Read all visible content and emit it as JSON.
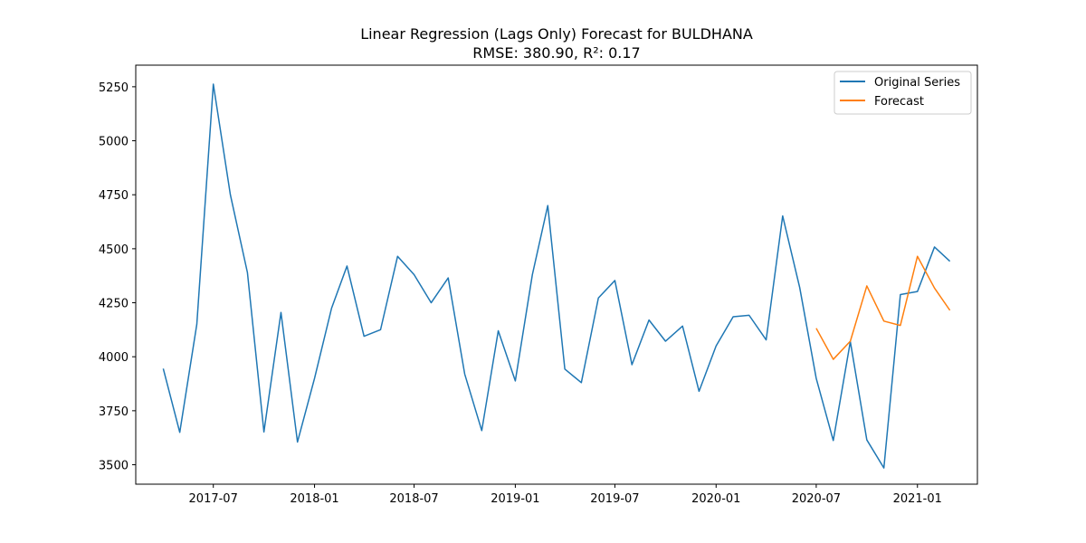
{
  "chart_data": {
    "type": "line",
    "title": "Linear Regression (Lags Only) Forecast for BULDHANA",
    "subtitle": "RMSE: 380.90, R²: 0.17",
    "xlabel": "",
    "ylabel": "",
    "xlim": [
      "2017-02-10",
      "2021-04-20"
    ],
    "ylim": [
      3410,
      5350
    ],
    "x_ticks": [
      "2017-07-01",
      "2018-01-01",
      "2018-07-01",
      "2019-01-01",
      "2019-07-01",
      "2020-01-01",
      "2020-07-01",
      "2021-01-01"
    ],
    "x_tick_labels": [
      "2017-07",
      "2018-01",
      "2018-07",
      "2019-01",
      "2019-07",
      "2020-01",
      "2020-07",
      "2021-01"
    ],
    "y_ticks": [
      3500,
      3750,
      4000,
      4250,
      4500,
      4750,
      5000,
      5250
    ],
    "y_tick_labels": [
      "3500",
      "3750",
      "4000",
      "4250",
      "4500",
      "4750",
      "5000",
      "5250"
    ],
    "grid": false,
    "legend_position": "top-right",
    "series": [
      {
        "name": "Original Series",
        "color": "#1f77b4",
        "x": [
          "2017-04-01",
          "2017-05-01",
          "2017-06-01",
          "2017-07-01",
          "2017-08-01",
          "2017-09-01",
          "2017-10-01",
          "2017-11-01",
          "2017-12-01",
          "2018-01-01",
          "2018-02-01",
          "2018-03-01",
          "2018-04-01",
          "2018-05-01",
          "2018-06-01",
          "2018-07-01",
          "2018-08-01",
          "2018-09-01",
          "2018-10-01",
          "2018-11-01",
          "2018-12-01",
          "2019-01-01",
          "2019-02-01",
          "2019-03-01",
          "2019-04-01",
          "2019-05-01",
          "2019-06-01",
          "2019-07-01",
          "2019-08-01",
          "2019-09-01",
          "2019-10-01",
          "2019-11-01",
          "2019-12-01",
          "2020-01-01",
          "2020-02-01",
          "2020-03-01",
          "2020-04-01",
          "2020-05-01",
          "2020-06-01",
          "2020-07-01",
          "2020-08-01",
          "2020-09-01",
          "2020-10-01",
          "2020-11-01",
          "2020-12-01",
          "2021-01-01",
          "2021-02-01",
          "2021-03-01"
        ],
        "values": [
          3945,
          3650,
          4150,
          5262,
          4750,
          4390,
          3652,
          4205,
          3605,
          3900,
          4225,
          4420,
          4095,
          4125,
          4465,
          4380,
          4250,
          4365,
          3920,
          3658,
          4120,
          3888,
          4380,
          4700,
          3943,
          3880,
          4272,
          4353,
          3963,
          4170,
          4072,
          4142,
          3840,
          4050,
          4185,
          4192,
          4078,
          4652,
          4320,
          3900,
          3612,
          4070,
          3615,
          3485,
          4288,
          4302,
          4508,
          4442
        ]
      },
      {
        "name": "Forecast",
        "color": "#ff7f0e",
        "x": [
          "2020-07-01",
          "2020-08-01",
          "2020-09-01",
          "2020-10-01",
          "2020-11-01",
          "2020-12-01",
          "2021-01-01",
          "2021-02-01",
          "2021-03-01"
        ],
        "values": [
          4132,
          3988,
          4072,
          4328,
          4165,
          4145,
          4465,
          4318,
          4215
        ]
      }
    ]
  }
}
